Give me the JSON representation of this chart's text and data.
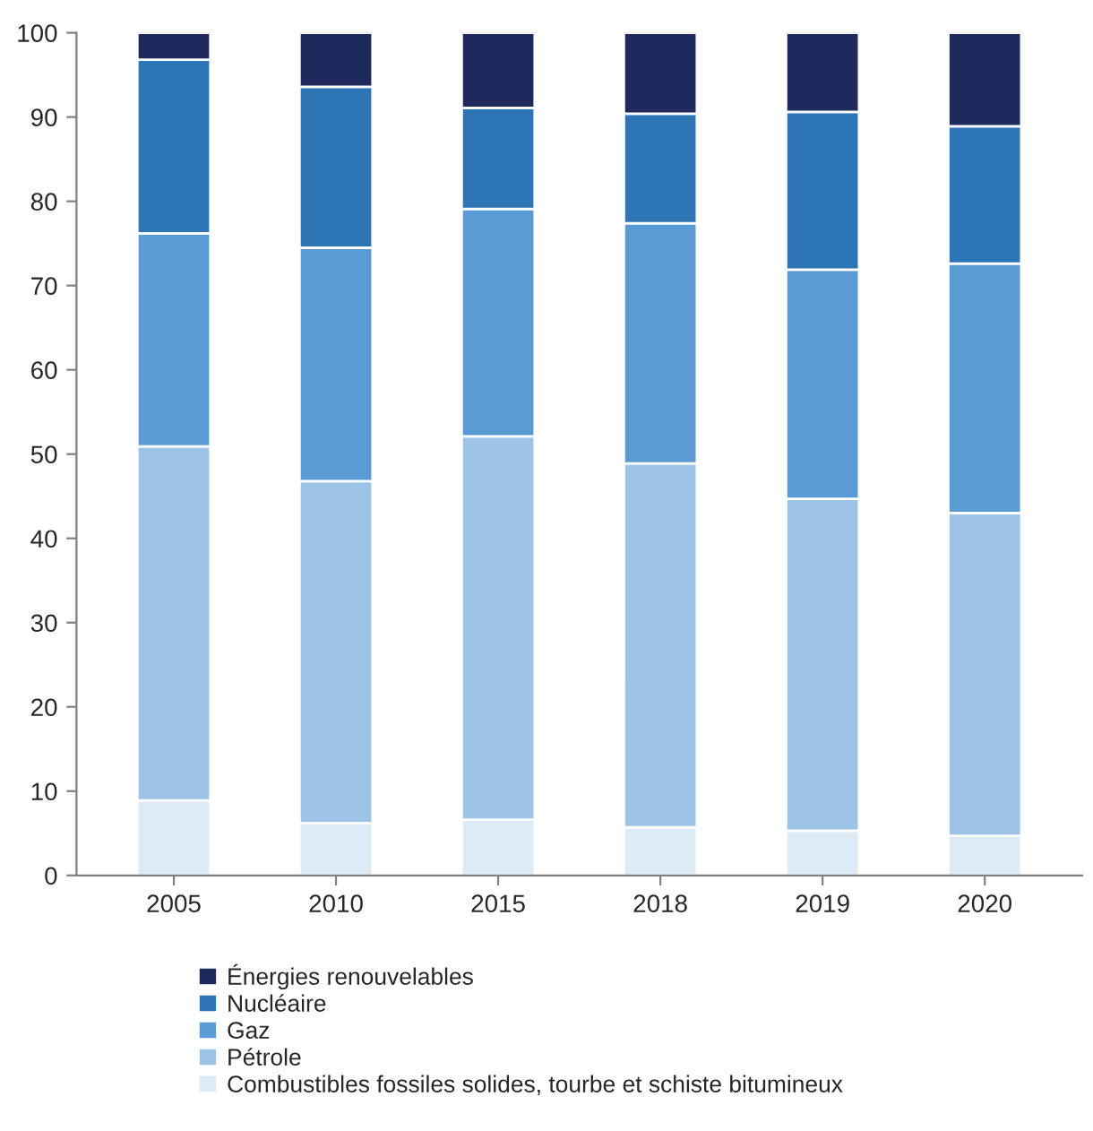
{
  "chart_data": {
    "type": "bar",
    "stacked": true,
    "categories": [
      "2005",
      "2010",
      "2015",
      "2018",
      "2019",
      "2020"
    ],
    "ylim": [
      0,
      100
    ],
    "yticks": [
      0,
      10,
      20,
      30,
      40,
      50,
      60,
      70,
      80,
      90,
      100
    ],
    "grid": false,
    "legend": "bottom",
    "series": [
      {
        "name": "Combustibles fossiles solides, tourbe et schiste bitumineux",
        "color": "#ddebf7",
        "values": [
          8.9,
          6.2,
          6.6,
          5.7,
          5.3,
          4.7
        ]
      },
      {
        "name": "Pétrole",
        "color": "#9dc3e6",
        "values": [
          42.0,
          40.6,
          45.5,
          43.2,
          39.4,
          38.3
        ]
      },
      {
        "name": "Gaz",
        "color": "#5b9bd5",
        "values": [
          25.3,
          27.7,
          27.0,
          28.5,
          27.2,
          29.6
        ]
      },
      {
        "name": "Nucléaire",
        "color": "#2e75b6",
        "values": [
          20.6,
          19.1,
          12.0,
          13.0,
          18.7,
          16.3
        ]
      },
      {
        "name": "Énergies renouvelables",
        "color": "#1f2a5c",
        "values": [
          3.2,
          6.4,
          8.9,
          9.6,
          9.4,
          11.1
        ]
      }
    ]
  }
}
